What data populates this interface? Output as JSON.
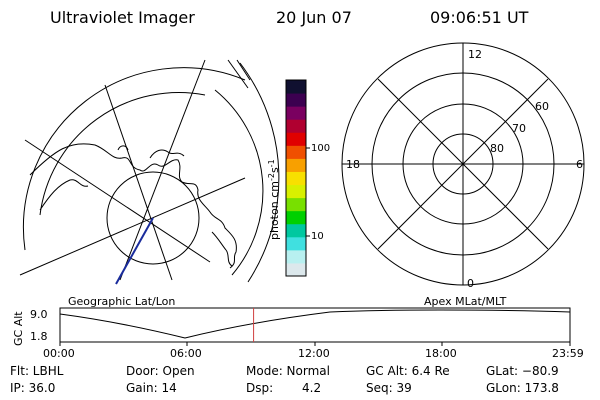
{
  "header": {
    "title": "Ultraviolet Imager",
    "date": "20 Jun 07",
    "time": "09:06:51 UT"
  },
  "left_panel": {
    "label": "Geographic Lat/Lon"
  },
  "right_panel": {
    "label": "Apex MLat/MLT",
    "mlt_labels": {
      "top": "12",
      "left": "18",
      "right": "6",
      "bottom": "0"
    },
    "lat_labels": [
      "60",
      "70",
      "80"
    ]
  },
  "colorbar": {
    "unit_label": "photon cm",
    "unit_sup": "-2",
    "unit_s": "s",
    "unit_sup2": "-1",
    "ticks": [
      "100",
      "10"
    ],
    "colors": [
      "#dce8ec",
      "#b8f0f0",
      "#40e0e0",
      "#00c8a0",
      "#00d000",
      "#78e000",
      "#d8f000",
      "#f8e000",
      "#f8a000",
      "#f05000",
      "#e00000",
      "#b00030",
      "#7a0060",
      "#3c0050",
      "#101030"
    ]
  },
  "timeline": {
    "axis_label": "GC Alt",
    "ymax": "9.0",
    "ymin": "1.8",
    "ticks": [
      "00:00",
      "06:00",
      "12:00",
      "18:00",
      "23:59"
    ],
    "current_hour": 9.11
  },
  "footer": {
    "row1": {
      "flt": "Flt: LBHL",
      "door": "Door: Open",
      "mode": "Mode: Normal",
      "gcalt": "GC Alt: 6.4 Re",
      "glat": "GLat: −80.9"
    },
    "row2": {
      "ip": "IP: 36.0",
      "gain": "Gain: 14",
      "dsp_label": "Dsp:",
      "dsp_value": "4.2",
      "seq": "Seq: 39",
      "glon": "GLon: 173.8"
    }
  }
}
